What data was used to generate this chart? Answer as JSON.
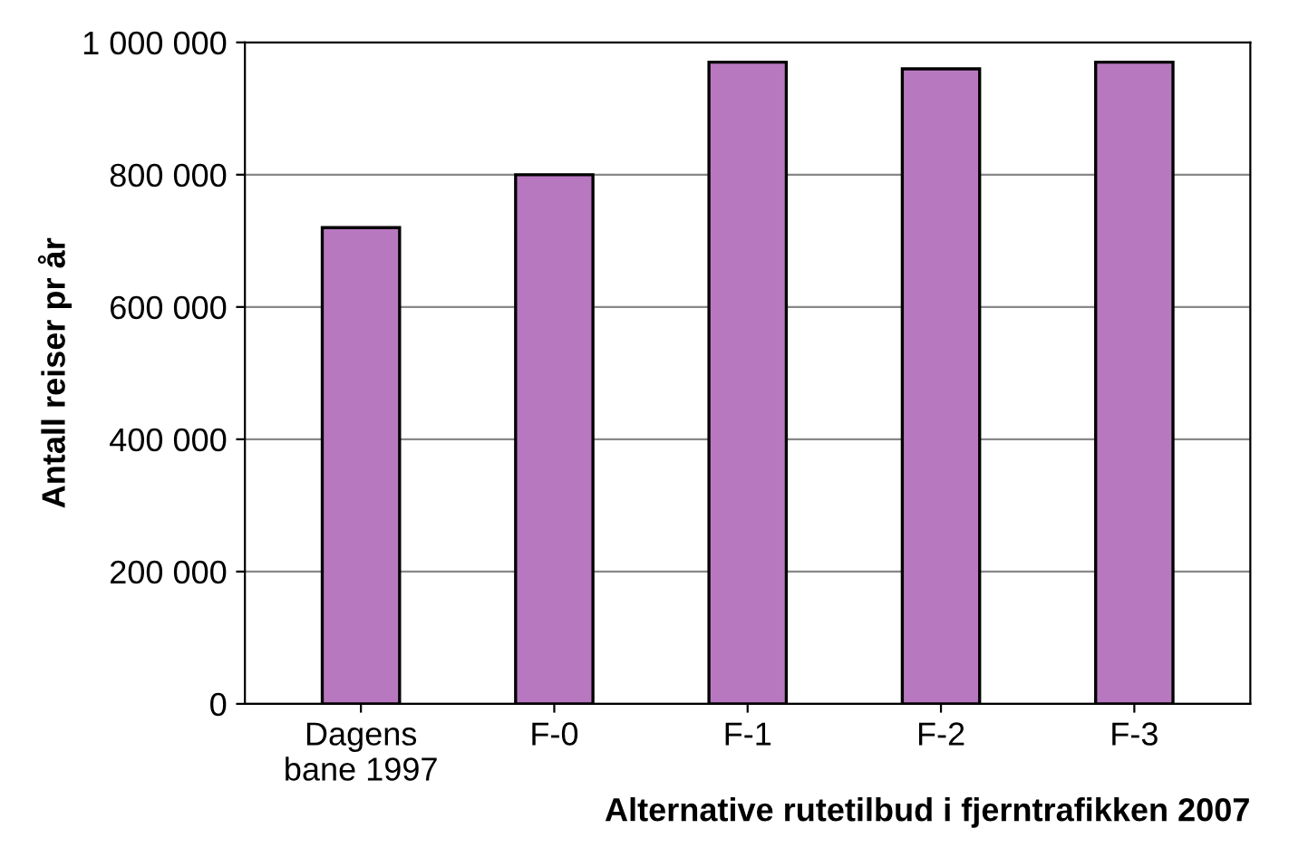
{
  "chart_data": {
    "type": "bar",
    "categories": [
      "Dagens\nbane 1997",
      "F-0",
      "F-1",
      "F-2",
      "F-3"
    ],
    "values": [
      720000,
      800000,
      970000,
      960000,
      970000
    ],
    "color": "#b878c0",
    "xlabel": "Alternative rutetilbud i fjerntrafikken 2007",
    "ylabel": "Antall reiser pr år",
    "ylim": [
      0,
      1000000
    ],
    "yticks": [
      {
        "value": 0,
        "label": "0"
      },
      {
        "value": 200000,
        "label": "200 000"
      },
      {
        "value": 400000,
        "label": "400 000"
      },
      {
        "value": 600000,
        "label": "600 000"
      },
      {
        "value": 800000,
        "label": "800 000"
      },
      {
        "value": 1000000,
        "label": "1 000 000"
      }
    ],
    "grid": "y"
  }
}
